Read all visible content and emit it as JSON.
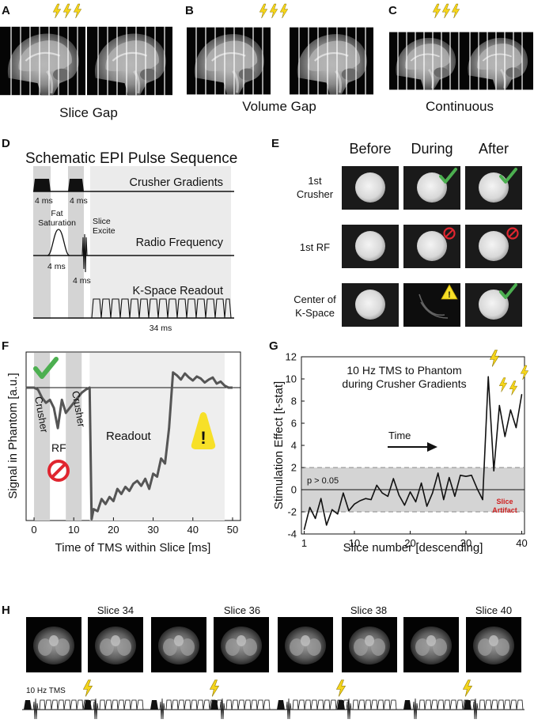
{
  "panels": {
    "A": {
      "letter": "A",
      "label": "Slice Gap"
    },
    "B": {
      "letter": "B",
      "label": "Volume Gap"
    },
    "C": {
      "letter": "C",
      "label": "Continuous"
    },
    "D": {
      "letter": "D",
      "title": "Schematic EPI Pulse Sequence",
      "rows": {
        "crusher": "Crusher Gradients",
        "rf": "Radio Frequency",
        "kspace": "K-Space Readout"
      },
      "fat_saturation": [
        "Fat",
        "Saturation"
      ],
      "slice_excite": [
        "Slice",
        "Excite"
      ],
      "durations": {
        "crusher1": "4 ms",
        "crusher2": "4 ms",
        "fat": "4 ms",
        "excite": "4 ms",
        "readout": "34 ms"
      }
    },
    "E": {
      "letter": "E",
      "columns": [
        "Before",
        "During",
        "After"
      ],
      "rows": [
        {
          "label": [
            "1st",
            "Crusher"
          ],
          "during": "check",
          "after": "check"
        },
        {
          "label": [
            "1st RF"
          ],
          "during": "no",
          "after": "no"
        },
        {
          "label": [
            "Center of",
            "K-Space"
          ],
          "during": "warning",
          "after": "check"
        }
      ]
    },
    "F": {
      "letter": "F",
      "labels": {
        "crusher1": "Crusher",
        "crusher2": "Crusher",
        "rf": "RF",
        "readout": "Readout"
      }
    },
    "G": {
      "letter": "G",
      "annotation": [
        "10 Hz TMS to Phantom",
        "during Crusher Gradients"
      ],
      "time_label": "Time",
      "significance_label": "p > 0.05",
      "artifact_label": [
        "Slice",
        "Artifact"
      ]
    },
    "H": {
      "letter": "H",
      "slice_labels": [
        "Slice 34",
        "Slice 36",
        "Slice 38",
        "Slice 40"
      ],
      "tms_label": "10 Hz TMS"
    }
  },
  "colors": {
    "check": "#4caf50",
    "stop": "#e0252f",
    "warning": "#f7e028",
    "shade": "#d4d4d4",
    "shade_light": "#eeeeee"
  },
  "chart_data": [
    {
      "type": "line",
      "panel": "F",
      "xlabel": "Time of TMS within Slice [ms]",
      "ylabel": "Signal in Phantom [a.u.]",
      "xlim": [
        -2,
        52
      ],
      "xticks": [
        0,
        10,
        20,
        30,
        40,
        50
      ],
      "shaded_regions": [
        [
          0,
          4
        ],
        [
          8,
          12
        ],
        [
          14,
          48
        ]
      ],
      "x": [
        -2,
        -1,
        0,
        1,
        2,
        3,
        4,
        5,
        6,
        7,
        8,
        9,
        10,
        11,
        12,
        13,
        14,
        14.5,
        15,
        16,
        17,
        18,
        19,
        20,
        21,
        22,
        23,
        24,
        25,
        26,
        27,
        28,
        29,
        30,
        31,
        32,
        33,
        34,
        35,
        36,
        37,
        38,
        39,
        40,
        41,
        42,
        43,
        44,
        45,
        46,
        47,
        48,
        49,
        50
      ],
      "y": [
        0,
        0,
        0,
        -0.02,
        -0.1,
        -0.15,
        -0.12,
        -0.2,
        -0.4,
        -0.12,
        -0.25,
        -0.2,
        -0.15,
        -0.1,
        -0.05,
        -0.02,
        0,
        -1.3,
        -1.2,
        -1.22,
        -1.1,
        -1.15,
        -1.08,
        -1.12,
        -1.0,
        -1.05,
        -0.98,
        -1.02,
        -0.95,
        -0.92,
        -0.97,
        -0.9,
        -1.0,
        -0.85,
        -0.88,
        -0.7,
        -0.75,
        -0.4,
        0.15,
        0.12,
        0.08,
        0.14,
        0.1,
        0.07,
        0.11,
        0.09,
        0.05,
        0.08,
        0.1,
        0.04,
        0.06,
        0.02,
        0,
        0
      ]
    },
    {
      "type": "line",
      "panel": "G",
      "xlabel": "Slice number [descending]",
      "ylabel": "Stimulation Effect [t-stat]",
      "xlim": [
        0.5,
        40.5
      ],
      "ylim": [
        -4,
        12
      ],
      "xticks": [
        1,
        10,
        20,
        30,
        40
      ],
      "yticks": [
        -4,
        -2,
        0,
        2,
        4,
        6,
        8,
        10,
        12
      ],
      "band": [
        -2,
        2
      ],
      "x": [
        1,
        2,
        3,
        4,
        5,
        6,
        7,
        8,
        9,
        10,
        11,
        12,
        13,
        14,
        15,
        16,
        17,
        18,
        19,
        20,
        21,
        22,
        23,
        24,
        25,
        26,
        27,
        28,
        29,
        30,
        31,
        32,
        33,
        34,
        35,
        36,
        37,
        38,
        39,
        40
      ],
      "y": [
        -3.6,
        -1.6,
        -2.6,
        -0.8,
        -3.2,
        -1.8,
        -2.2,
        -0.3,
        -1.9,
        -1.3,
        -1.0,
        -0.8,
        -0.9,
        0.4,
        -0.3,
        -0.6,
        1.0,
        -0.5,
        -1.4,
        -0.2,
        -1.1,
        0.6,
        -1.5,
        -0.3,
        1.5,
        -0.9,
        1.1,
        -0.6,
        1.3,
        1.2,
        1.3,
        0.1,
        -0.9,
        10.2,
        1.7,
        7.6,
        4.8,
        7.2,
        5.6,
        8.6
      ]
    }
  ]
}
